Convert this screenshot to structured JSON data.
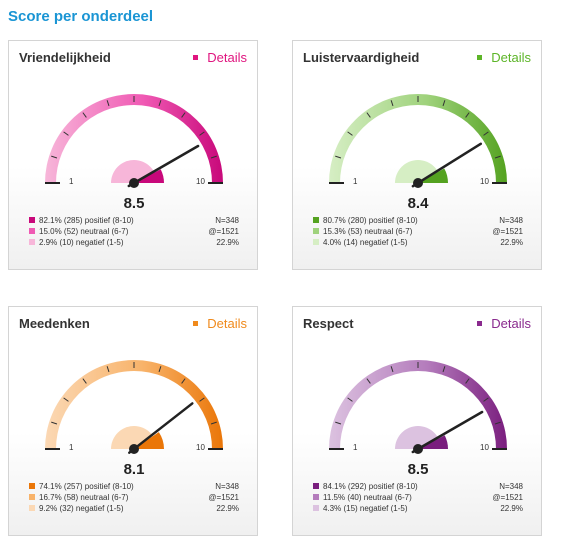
{
  "page_title": "Score per onderdeel",
  "cards": [
    {
      "title": "Vriendelijkheid",
      "details": "Details",
      "score": "8.5",
      "score_value": 8.5,
      "min_label": "1",
      "max_label": "10",
      "inner_pct": 0.85,
      "colors": {
        "strong": "#c8087a",
        "medium": "#f05ab4",
        "light": "#f7b6d9",
        "accent": "#e0157f"
      },
      "legend": [
        {
          "text": "82.1% (285) positief (8-10)",
          "stat": "N=348"
        },
        {
          "text": "15.0% (52) neutraal (6-7)",
          "stat": "@=1521"
        },
        {
          "text": "2.9% (10) negatief (1-5)",
          "stat": "22.9%"
        }
      ]
    },
    {
      "title": "Luistervaardigheid",
      "details": "Details",
      "score": "8.4",
      "score_value": 8.4,
      "min_label": "1",
      "max_label": "10",
      "inner_pct": 0.84,
      "colors": {
        "strong": "#54a220",
        "medium": "#9fd27c",
        "light": "#d6eec4",
        "accent": "#5db528"
      },
      "legend": [
        {
          "text": "80.7% (280) positief (8-10)",
          "stat": "N=348"
        },
        {
          "text": "15.3% (53) neutraal (6-7)",
          "stat": "@=1521"
        },
        {
          "text": "4.0% (14) negatief (1-5)",
          "stat": "22.9%"
        }
      ]
    },
    {
      "title": "Meedenken",
      "details": "Details",
      "score": "8.1",
      "score_value": 8.1,
      "min_label": "1",
      "max_label": "10",
      "inner_pct": 0.81,
      "colors": {
        "strong": "#ea7608",
        "medium": "#f8b36a",
        "light": "#fbd8b4",
        "accent": "#f08a1c"
      },
      "legend": [
        {
          "text": "74.1% (257) positief (8-10)",
          "stat": "N=348"
        },
        {
          "text": "16.7% (58) neutraal (6-7)",
          "stat": "@=1521"
        },
        {
          "text": "9.2% (32) negatief (1-5)",
          "stat": "22.9%"
        }
      ]
    },
    {
      "title": "Respect",
      "details": "Details",
      "score": "8.5",
      "score_value": 8.5,
      "min_label": "1",
      "max_label": "10",
      "inner_pct": 0.85,
      "colors": {
        "strong": "#7a1e7e",
        "medium": "#b47cbc",
        "light": "#dcc2e0",
        "accent": "#8a2a8e"
      },
      "legend": [
        {
          "text": "84.1% (292) positief (8-10)",
          "stat": "N=348"
        },
        {
          "text": "11.5% (40) neutraal (6-7)",
          "stat": "@=1521"
        },
        {
          "text": "4.3% (15) negatief (1-5)",
          "stat": "22.9%"
        }
      ]
    }
  ]
}
